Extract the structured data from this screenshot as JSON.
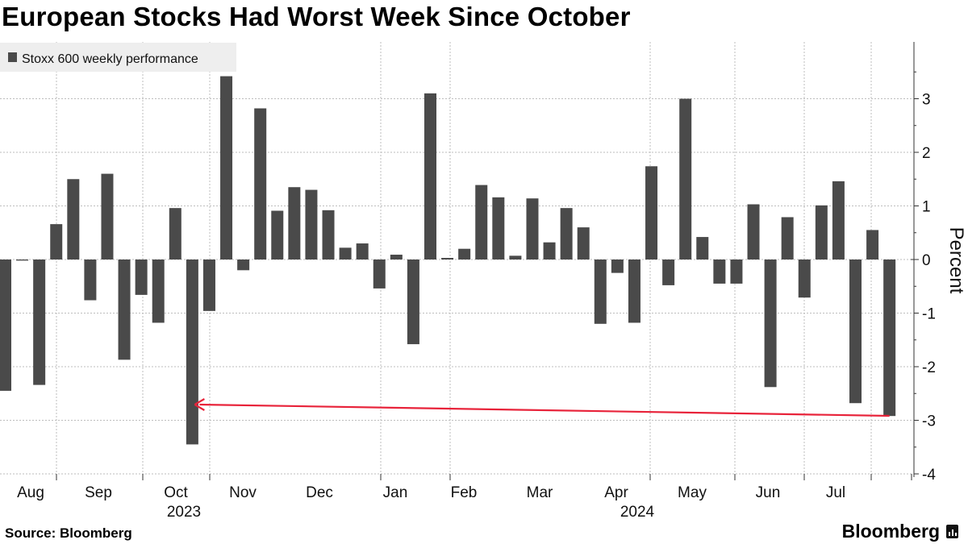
{
  "title": "European Stocks Had Worst Week Since October",
  "source": "Source: Bloomberg",
  "brand": "Bloomberg",
  "colors": {
    "bar": "#4a4a4a",
    "arrow": "#e8233a",
    "grid": "#bdbdbd"
  },
  "chart_data": {
    "type": "bar",
    "title": "European Stocks Had Worst Week Since October",
    "xlabel": "",
    "ylabel": "Percent",
    "legend": [
      "Stoxx 600 weekly performance"
    ],
    "legend_position": "top-left",
    "ylim": [
      -4.2,
      4.0
    ],
    "yticks": [
      -4,
      -3,
      -2,
      -1,
      0,
      1,
      2,
      3
    ],
    "x_month_labels": [
      "Aug",
      "Sep",
      "Oct",
      "Nov",
      "Dec",
      "Jan",
      "Feb",
      "Mar",
      "Apr",
      "May",
      "Jun",
      "Jul"
    ],
    "x_year_labels": [
      "2023",
      "2024"
    ],
    "series": [
      {
        "name": "Stoxx 600 weekly performance",
        "values": [
          -2.45,
          -0.02,
          -2.34,
          0.66,
          1.5,
          -0.76,
          1.6,
          -1.87,
          -0.66,
          -1.18,
          0.96,
          -3.45,
          -0.96,
          3.42,
          -0.2,
          2.82,
          0.91,
          1.35,
          1.3,
          0.92,
          0.22,
          0.3,
          -0.54,
          0.09,
          -1.58,
          3.1,
          0.03,
          0.2,
          1.39,
          1.16,
          0.07,
          1.14,
          0.32,
          0.96,
          0.6,
          -1.2,
          -0.25,
          -1.18,
          1.74,
          -0.48,
          3.0,
          0.42,
          -0.45,
          -0.45,
          1.03,
          -2.38,
          0.79,
          -0.71,
          1.01,
          1.46,
          -2.68,
          0.55,
          -2.92
        ]
      }
    ],
    "annotations": [
      {
        "type": "arrow",
        "description": "red arrow from the latest week back to the October low"
      }
    ]
  }
}
